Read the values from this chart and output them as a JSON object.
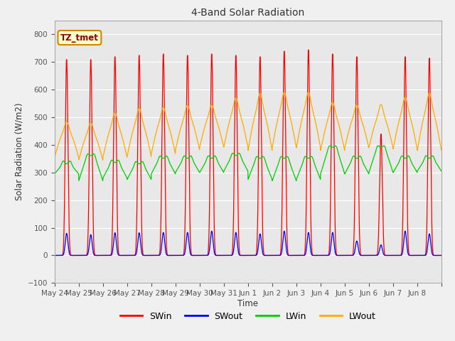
{
  "title": "4-Band Solar Radiation",
  "ylabel": "Solar Radiation (W/m2)",
  "xlabel": "Time",
  "annotation": "TZ_tmet",
  "ylim": [
    -100,
    850
  ],
  "yticks": [
    -100,
    0,
    100,
    200,
    300,
    400,
    500,
    600,
    700,
    800
  ],
  "x_tick_labels": [
    "May 24",
    "May 25",
    "May 26",
    "May 27",
    "May 28",
    "May 29",
    "May 30",
    "May 31",
    "Jun 1",
    "Jun 2",
    "Jun 3",
    "Jun 4",
    "Jun 5",
    "Jun 6",
    "Jun 7",
    "Jun 8"
  ],
  "colors": {
    "SWin": "#ff0000",
    "SWout": "#0000ff",
    "LWin": "#00cc00",
    "LWout": "#ffaa00"
  },
  "background_color": "#f0f0f0",
  "plot_bg_color": "#e8e8e8",
  "n_days": 16,
  "SWin_peak": [
    710,
    710,
    720,
    725,
    730,
    725,
    730,
    725,
    720,
    740,
    745,
    730,
    720,
    440,
    720,
    715
  ],
  "SWout_peak": [
    80,
    75,
    82,
    82,
    83,
    83,
    88,
    83,
    78,
    88,
    83,
    83,
    52,
    38,
    88,
    78
  ],
  "LWin_base": [
    295,
    270,
    280,
    275,
    295,
    300,
    300,
    305,
    275,
    270,
    275,
    295,
    295,
    300,
    300,
    305
  ],
  "LWin_amp": [
    35,
    90,
    55,
    55,
    55,
    50,
    50,
    55,
    75,
    80,
    75,
    95,
    55,
    90,
    50,
    45
  ],
  "LWout_base": [
    355,
    345,
    355,
    358,
    368,
    382,
    392,
    392,
    380,
    390,
    390,
    380,
    390,
    390,
    385,
    380
  ],
  "LWout_amp": [
    100,
    105,
    125,
    135,
    130,
    125,
    118,
    138,
    160,
    155,
    155,
    135,
    120,
    120,
    145,
    160
  ]
}
